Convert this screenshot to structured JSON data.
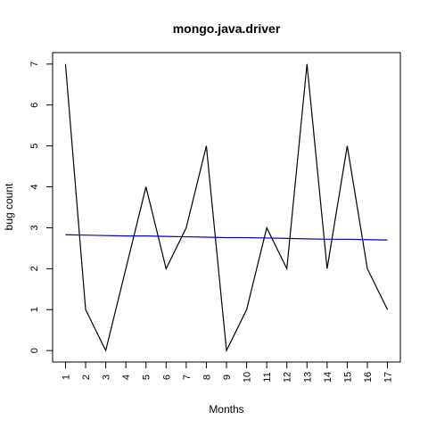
{
  "chart_data": {
    "type": "line",
    "title": "mongo.java.driver",
    "xlabel": "Months",
    "ylabel": "bug count",
    "x": [
      1,
      2,
      3,
      4,
      5,
      6,
      7,
      8,
      9,
      10,
      11,
      12,
      13,
      14,
      15,
      16,
      17
    ],
    "x_tick_labels": [
      "1",
      "2",
      "3",
      "4",
      "5",
      "6",
      "7",
      "8",
      "9",
      "10",
      "11",
      "12",
      "13",
      "14",
      "15",
      "16",
      "17"
    ],
    "y_ticks": [
      0,
      1,
      2,
      3,
      4,
      5,
      6,
      7
    ],
    "y_tick_labels": [
      "0",
      "1",
      "2",
      "3",
      "4",
      "5",
      "6",
      "7"
    ],
    "xlim": [
      0.36,
      17.64
    ],
    "ylim": [
      -0.28,
      7.28
    ],
    "grid": false,
    "series": [
      {
        "values": [
          7,
          1,
          0,
          2,
          4,
          2,
          3,
          5,
          0,
          1,
          3,
          2,
          7,
          2,
          5,
          2,
          1
        ],
        "color": "#000000"
      },
      {
        "kind": "trend",
        "values": [
          2.83,
          2.82,
          2.81,
          2.8,
          2.8,
          2.79,
          2.78,
          2.77,
          2.76,
          2.76,
          2.75,
          2.74,
          2.73,
          2.72,
          2.72,
          2.71,
          2.7
        ],
        "color": "#0000cc"
      }
    ]
  }
}
